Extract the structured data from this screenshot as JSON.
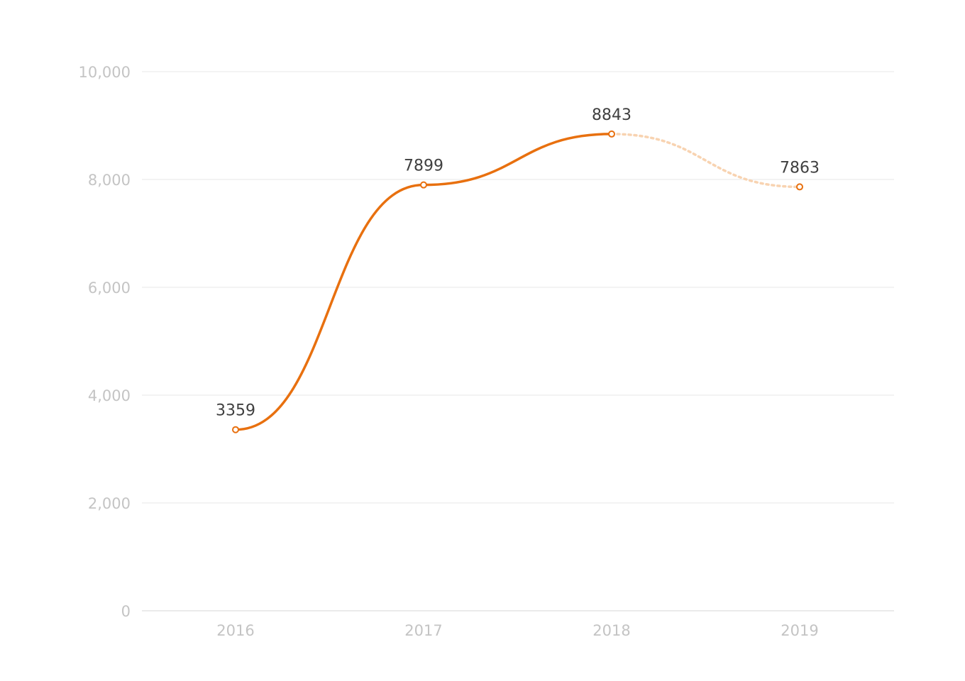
{
  "chart_data": {
    "type": "line",
    "title": "",
    "xlabel": "",
    "ylabel": "",
    "categories": [
      "2016",
      "2017",
      "2018",
      "2019"
    ],
    "series": [
      {
        "values": [
          3359,
          7899,
          8843,
          7863
        ],
        "projected_from_index": 2
      }
    ],
    "data_labels": [
      "3359",
      "7899",
      "8843",
      "7863"
    ],
    "ylim": [
      0,
      10000
    ],
    "yticks": [
      0,
      2000,
      4000,
      6000,
      8000,
      10000
    ],
    "ytick_labels": [
      "0",
      "2,000",
      "4,000",
      "6,000",
      "8,000",
      "10,000"
    ],
    "grid": true,
    "legend": "none",
    "colors": {
      "line": "#e8700f",
      "projection": "#f8d3b1",
      "point_stroke": "#e8700f"
    }
  }
}
